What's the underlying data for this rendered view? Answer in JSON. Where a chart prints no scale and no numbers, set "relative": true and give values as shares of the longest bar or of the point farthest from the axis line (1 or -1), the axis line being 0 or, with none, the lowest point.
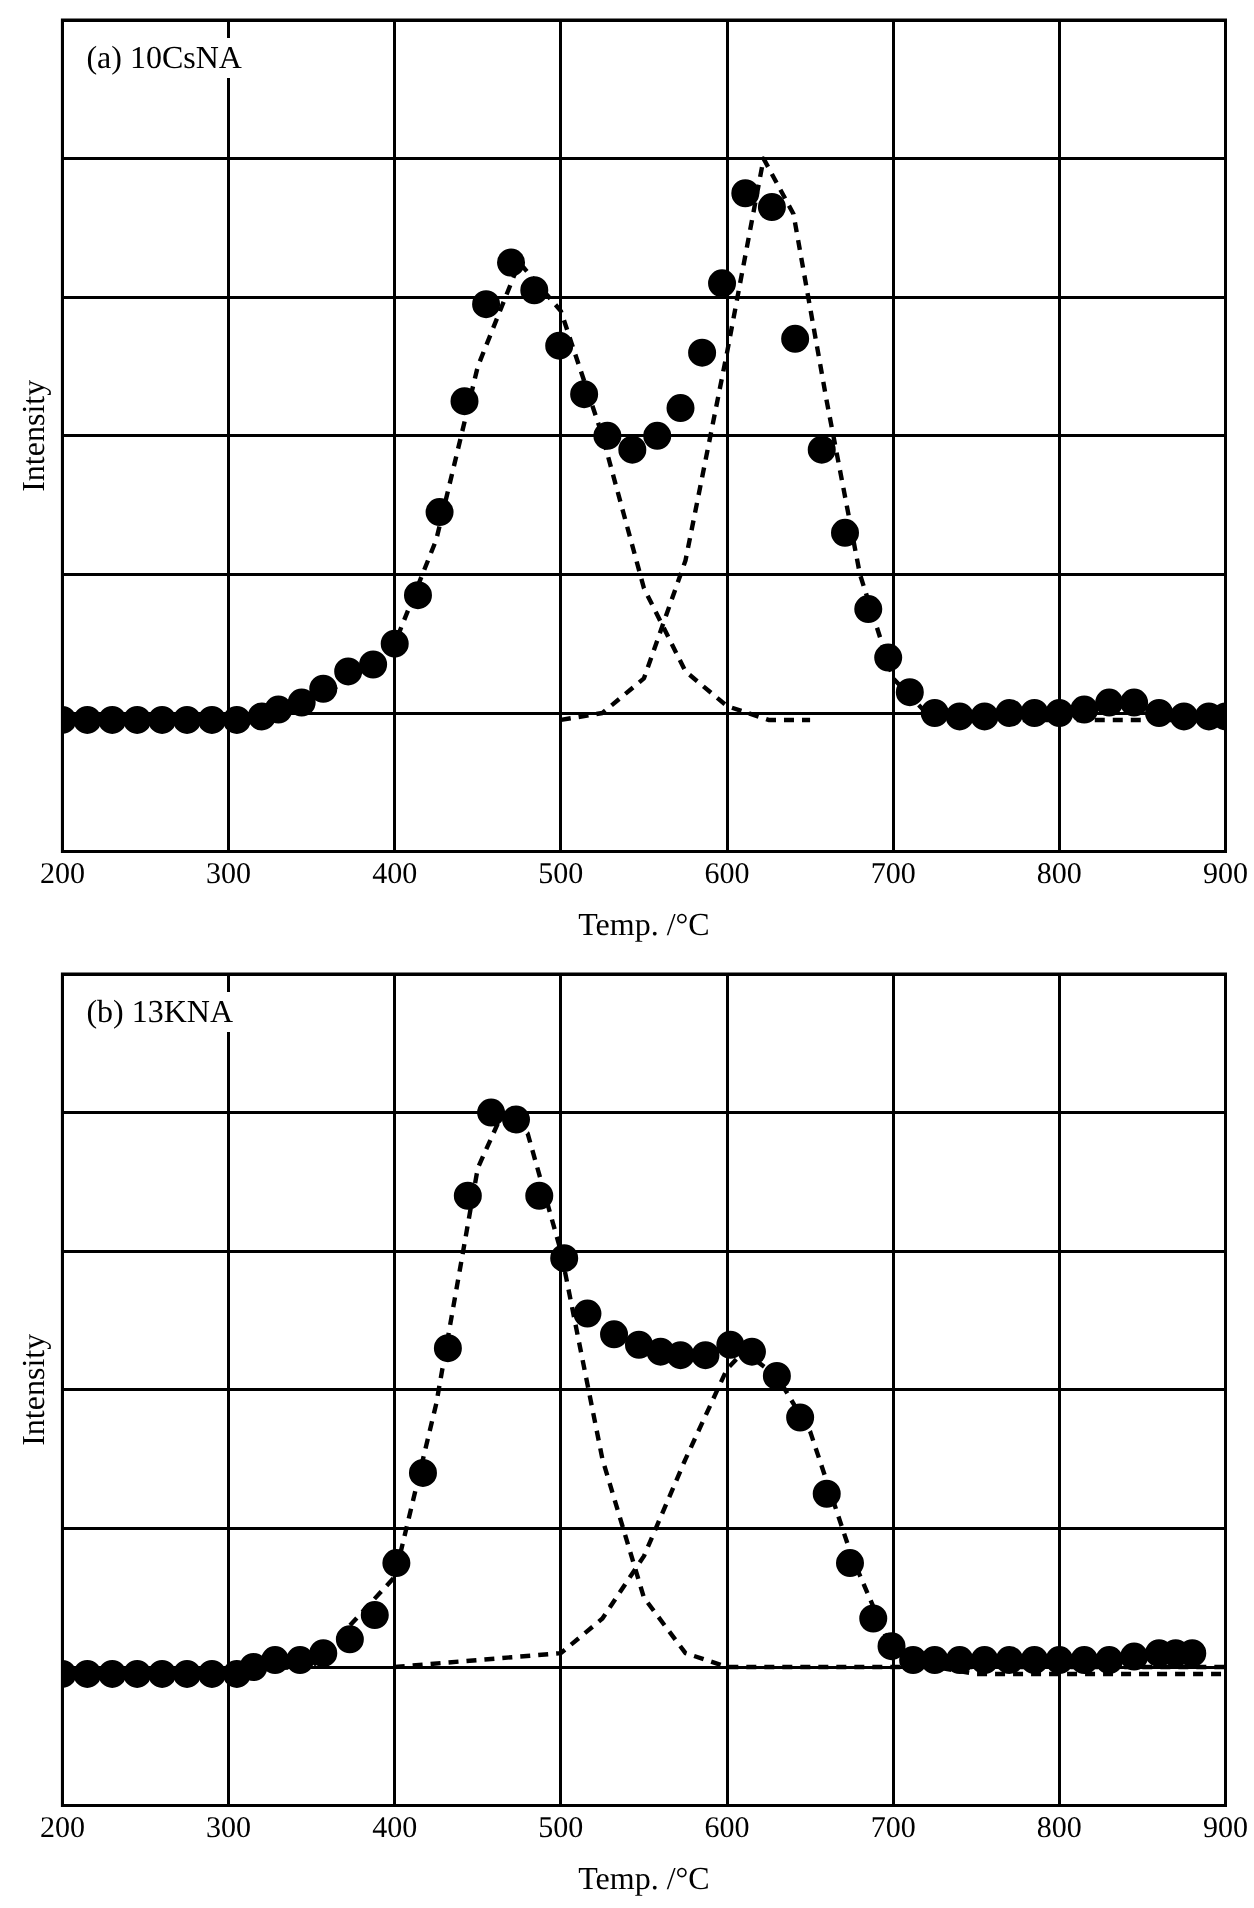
{
  "chart_data": [
    {
      "type": "scatter",
      "xlabel": "Temp. /°C",
      "ylabel": "Intensity",
      "annotations": [
        "(a) 10CsNA"
      ],
      "relative": true,
      "grid": true,
      "legend": false,
      "xlim": [
        200,
        900
      ],
      "xticks": [
        200,
        300,
        400,
        500,
        600,
        700,
        800,
        900
      ],
      "series": [
        {
          "type": "scatter",
          "color": "#000000",
          "marker": "circle",
          "x": [
            200,
            215,
            230,
            245,
            260,
            275,
            290,
            305,
            320,
            330,
            344,
            357,
            372,
            387,
            400,
            414,
            427,
            442,
            455,
            470,
            484,
            499,
            514,
            528,
            543,
            558,
            572,
            585,
            597,
            611,
            627,
            641,
            657,
            671,
            685,
            697,
            710,
            725,
            740,
            755,
            770,
            785,
            800,
            815,
            830,
            845,
            860,
            875,
            890,
            900
          ],
          "values": [
            0.19,
            0.19,
            0.19,
            0.19,
            0.19,
            0.19,
            0.19,
            0.19,
            0.195,
            0.205,
            0.215,
            0.235,
            0.26,
            0.27,
            0.3,
            0.37,
            0.49,
            0.65,
            0.79,
            0.85,
            0.81,
            0.73,
            0.66,
            0.6,
            0.58,
            0.6,
            0.64,
            0.72,
            0.82,
            0.95,
            0.93,
            0.74,
            0.58,
            0.46,
            0.35,
            0.28,
            0.23,
            0.2,
            0.195,
            0.195,
            0.2,
            0.2,
            0.2,
            0.205,
            0.215,
            0.215,
            0.2,
            0.195,
            0.195,
            0.195
          ]
        },
        {
          "type": "line",
          "color": "#000000",
          "line_style": "dashed",
          "x": [
            200,
            300,
            350,
            375,
            400,
            425,
            450,
            475,
            500,
            525,
            550,
            575,
            600,
            625,
            650
          ],
          "values": [
            0.19,
            0.19,
            0.22,
            0.25,
            0.3,
            0.45,
            0.7,
            0.85,
            0.78,
            0.6,
            0.38,
            0.26,
            0.21,
            0.19,
            0.19
          ]
        },
        {
          "type": "line",
          "color": "#000000",
          "line_style": "dashed",
          "x": [
            500,
            525,
            550,
            575,
            600,
            622,
            640,
            660,
            680,
            700,
            720,
            750,
            900
          ],
          "values": [
            0.19,
            0.2,
            0.25,
            0.42,
            0.72,
            1.0,
            0.92,
            0.65,
            0.4,
            0.25,
            0.2,
            0.19,
            0.19
          ]
        }
      ]
    },
    {
      "type": "scatter",
      "xlabel": "Temp. /°C",
      "ylabel": "Intensity",
      "annotations": [
        "(b) 13KNA"
      ],
      "relative": true,
      "grid": true,
      "legend": false,
      "xlim": [
        200,
        900
      ],
      "xticks": [
        200,
        300,
        400,
        500,
        600,
        700,
        800,
        900
      ],
      "series": [
        {
          "type": "scatter",
          "color": "#000000",
          "marker": "circle",
          "x": [
            200,
            215,
            230,
            245,
            260,
            275,
            290,
            305,
            315,
            328,
            343,
            357,
            373,
            388,
            401,
            417,
            432,
            444,
            458,
            473,
            487,
            502,
            516,
            532,
            547,
            560,
            572,
            587,
            602,
            615,
            630,
            644,
            660,
            674,
            688,
            699,
            712,
            725,
            740,
            755,
            770,
            785,
            800,
            815,
            830,
            845,
            860,
            870,
            880
          ],
          "values": [
            0.19,
            0.19,
            0.19,
            0.19,
            0.19,
            0.19,
            0.19,
            0.19,
            0.2,
            0.21,
            0.21,
            0.22,
            0.24,
            0.275,
            0.35,
            0.48,
            0.66,
            0.88,
            1.0,
            0.99,
            0.88,
            0.79,
            0.71,
            0.68,
            0.665,
            0.655,
            0.65,
            0.65,
            0.665,
            0.655,
            0.62,
            0.56,
            0.45,
            0.35,
            0.27,
            0.23,
            0.21,
            0.21,
            0.21,
            0.21,
            0.21,
            0.21,
            0.21,
            0.21,
            0.21,
            0.215,
            0.22,
            0.22,
            0.22
          ]
        },
        {
          "type": "line",
          "color": "#000000",
          "line_style": "dashed",
          "x": [
            200,
            350,
            400,
            425,
            450,
            465,
            480,
            500,
            525,
            550,
            575,
            600,
            650,
            700,
            900
          ],
          "values": [
            0.19,
            0.2,
            0.33,
            0.58,
            0.92,
            1.0,
            0.97,
            0.8,
            0.5,
            0.3,
            0.22,
            0.2,
            0.2,
            0.2,
            0.2
          ]
        },
        {
          "type": "line",
          "color": "#000000",
          "line_style": "dashed",
          "x": [
            400,
            500,
            525,
            550,
            575,
            600,
            610,
            630,
            650,
            675,
            700,
            725,
            750,
            900
          ],
          "values": [
            0.2,
            0.22,
            0.27,
            0.36,
            0.5,
            0.63,
            0.655,
            0.62,
            0.54,
            0.36,
            0.22,
            0.2,
            0.19,
            0.19
          ]
        }
      ]
    }
  ]
}
